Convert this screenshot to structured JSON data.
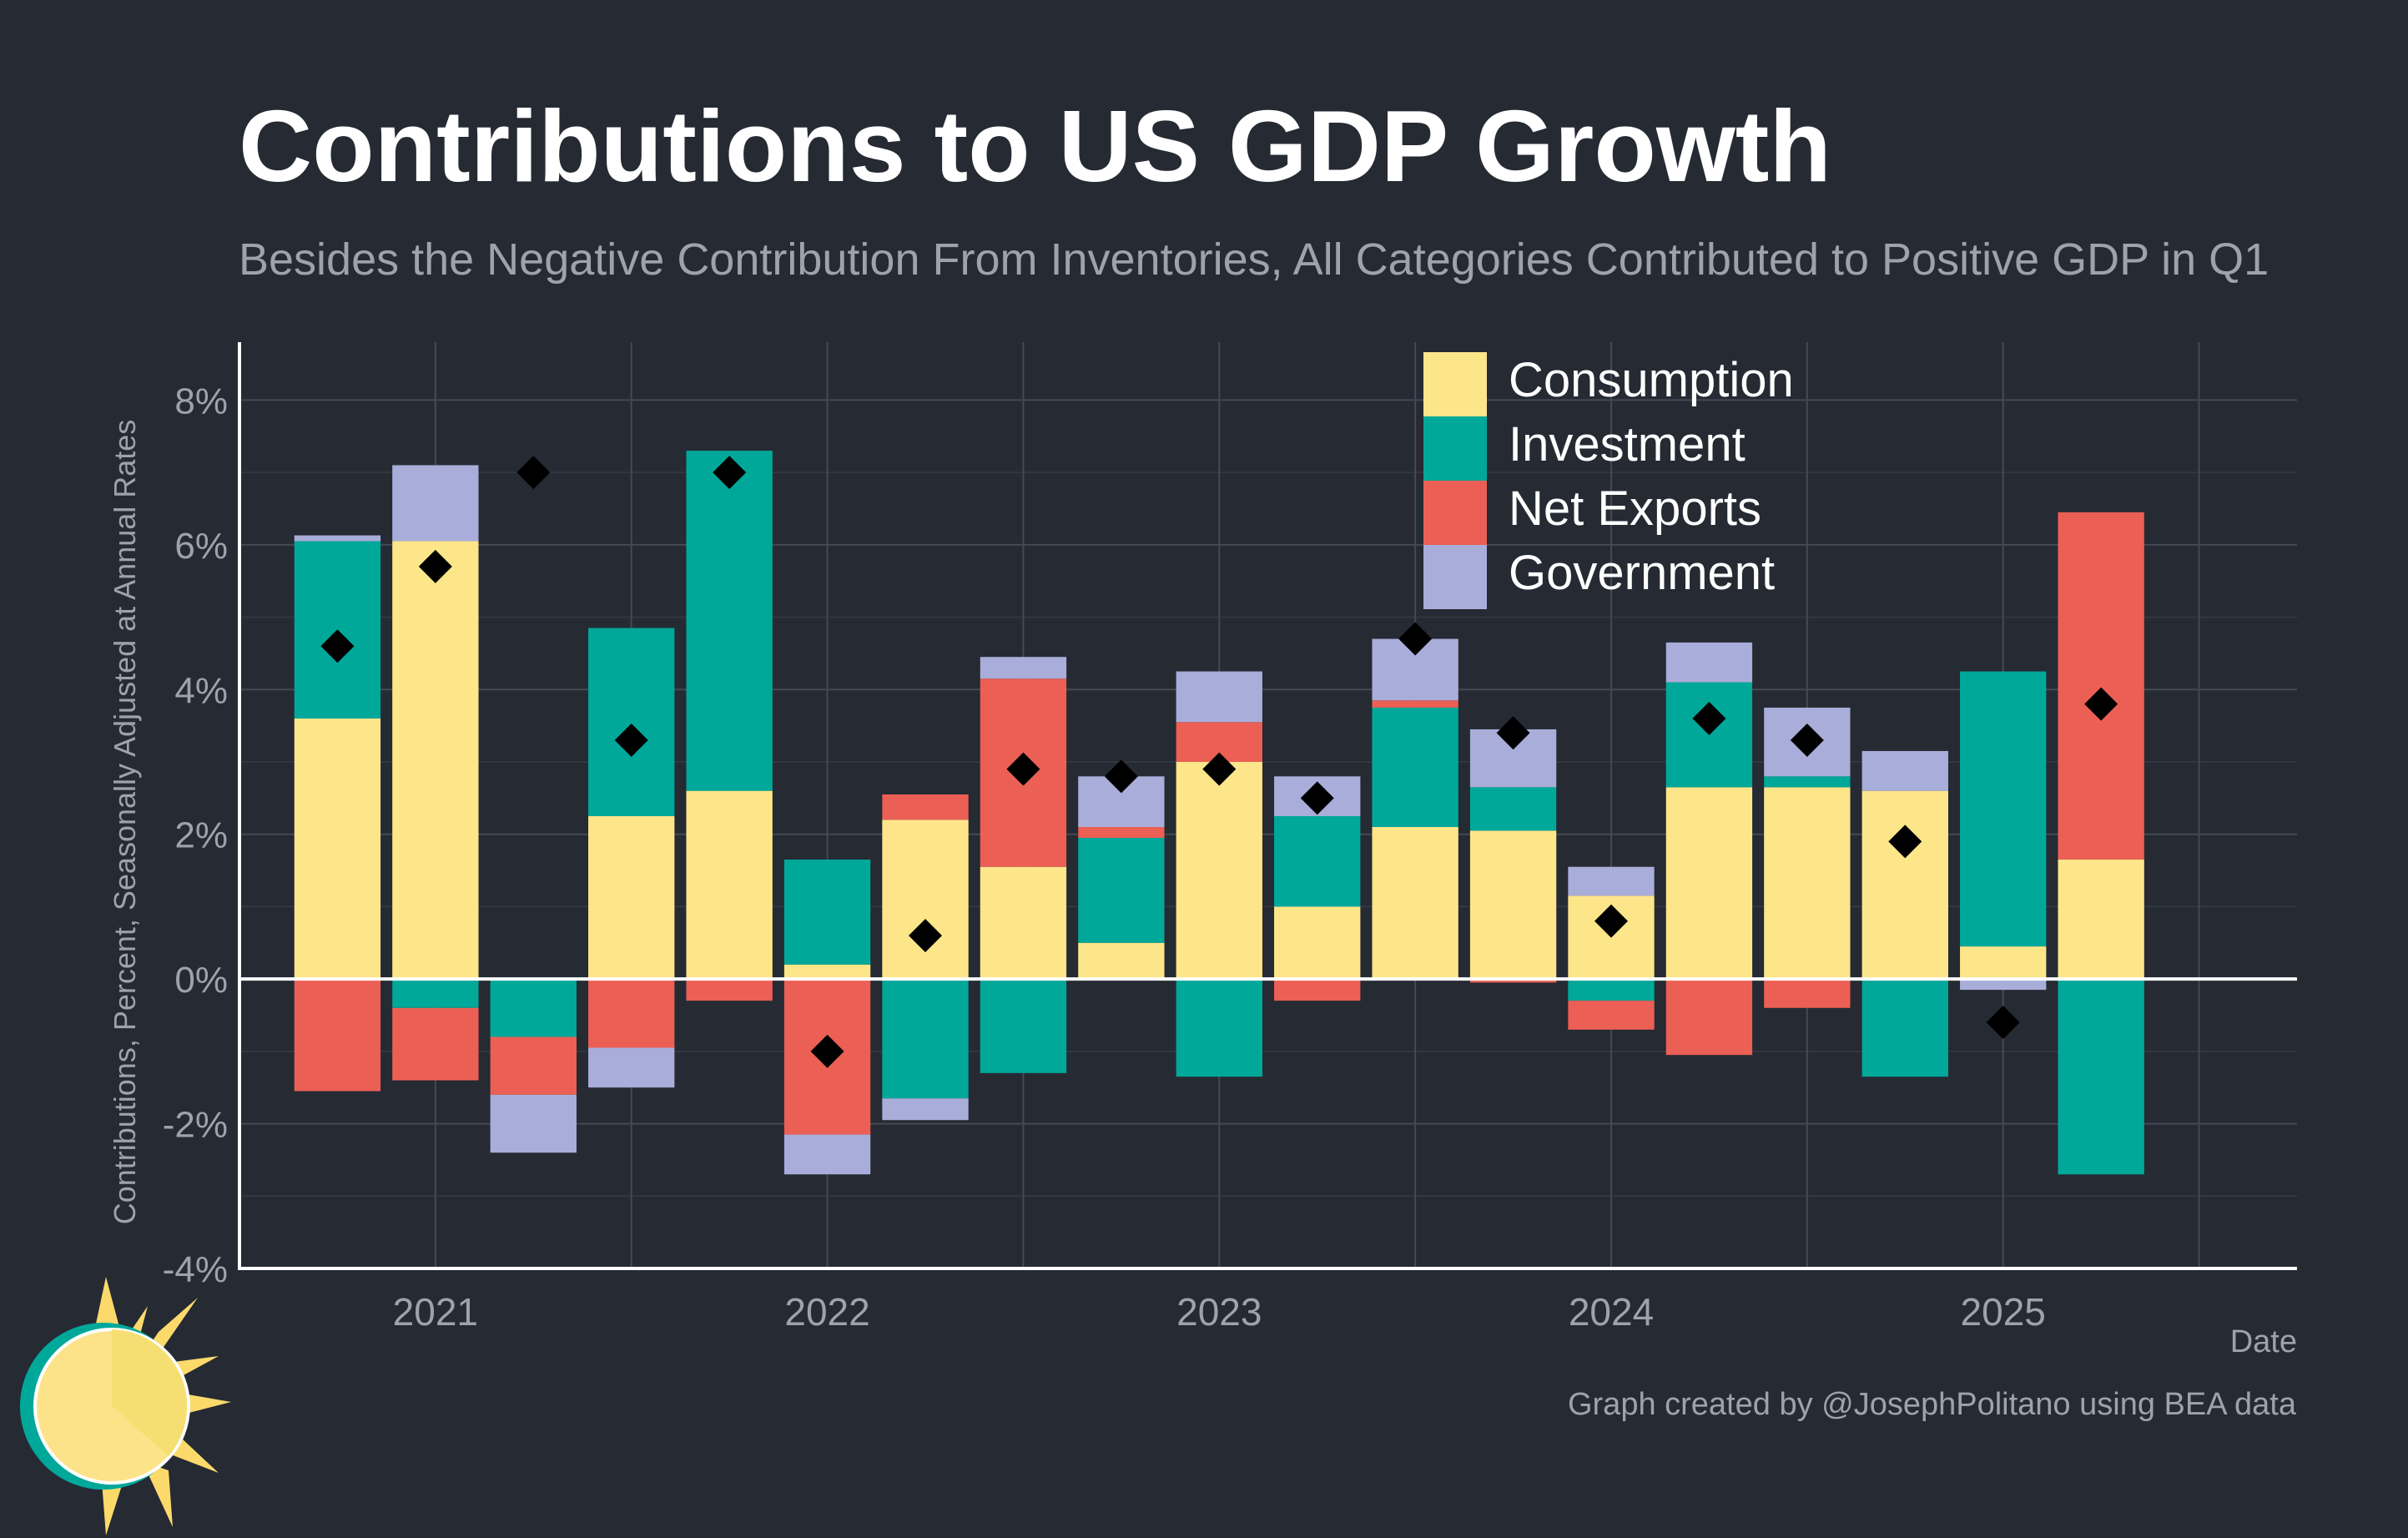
{
  "title": "Contributions to US GDP Growth",
  "subtitle": "Besides the Negative Contribution From Inventories, All Categories Contributed to Positive GDP in Q1",
  "credit": "Graph created by @JosephPolitano using BEA data",
  "chart_data": {
    "type": "bar",
    "stacked": true,
    "ylabel": "Contributions, Percent, Seasonally Adjusted at Annual Rates",
    "xlabel": "Date",
    "ylim": [
      -4,
      8.8
    ],
    "yticks": [
      -4,
      -2,
      0,
      2,
      4,
      6,
      8
    ],
    "ytick_labels": [
      "-4%",
      "-2%",
      "0%",
      "2%",
      "4%",
      "6%",
      "8%"
    ],
    "xticks": [
      "2021",
      "2022",
      "2023",
      "2024",
      "2025"
    ],
    "grid": true,
    "legend_position": "top-center",
    "categories": [
      "2020 Q4",
      "2021 Q1",
      "2021 Q2",
      "2021 Q3",
      "2021 Q4",
      "2022 Q1",
      "2022 Q2",
      "2022 Q3",
      "2022 Q4",
      "2023 Q1",
      "2023 Q2",
      "2023 Q3",
      "2023 Q4",
      "2024 Q1",
      "2024 Q2",
      "2024 Q3",
      "2024 Q4",
      "2025 Q1",
      "2025 Q2"
    ],
    "series": [
      {
        "name": "Consumption",
        "color": "#fde68a",
        "values": [
          3.6,
          6.05,
          0,
          2.25,
          2.6,
          0.2,
          2.2,
          1.55,
          0.5,
          3.0,
          1.0,
          2.1,
          2.05,
          1.15,
          2.65,
          2.65,
          2.6,
          0.45,
          1.65
        ]
      },
      {
        "name": "Investment",
        "color": "#00a89a",
        "values": [
          2.45,
          -0.4,
          -0.8,
          2.6,
          4.7,
          1.45,
          -1.65,
          -1.3,
          1.45,
          -1.35,
          1.25,
          1.65,
          0.6,
          -0.3,
          1.45,
          0.15,
          -1.35,
          3.8,
          -2.7
        ]
      },
      {
        "name": "Net Exports",
        "color": "#ec5f55",
        "values": [
          -1.55,
          -1.0,
          -0.8,
          -0.95,
          -0.3,
          -2.15,
          0.35,
          2.6,
          0.15,
          0.55,
          -0.3,
          0.1,
          -0.05,
          -0.4,
          -1.05,
          -0.4,
          0,
          0,
          4.8
        ]
      },
      {
        "name": "Government",
        "color": "#a9add9",
        "values": [
          0.08,
          1.05,
          -0.8,
          -0.55,
          0,
          -0.55,
          -0.3,
          0.3,
          0.7,
          0.7,
          0.55,
          0.85,
          0.8,
          0.4,
          0.55,
          0.95,
          0.55,
          -0.15,
          0
        ]
      }
    ],
    "total_gdp": [
      4.6,
      5.7,
      7.0,
      3.3,
      7.0,
      -1.0,
      0.6,
      2.9,
      2.8,
      2.9,
      2.5,
      4.7,
      3.4,
      0.8,
      3.6,
      3.3,
      1.9,
      -0.6,
      3.8
    ]
  }
}
